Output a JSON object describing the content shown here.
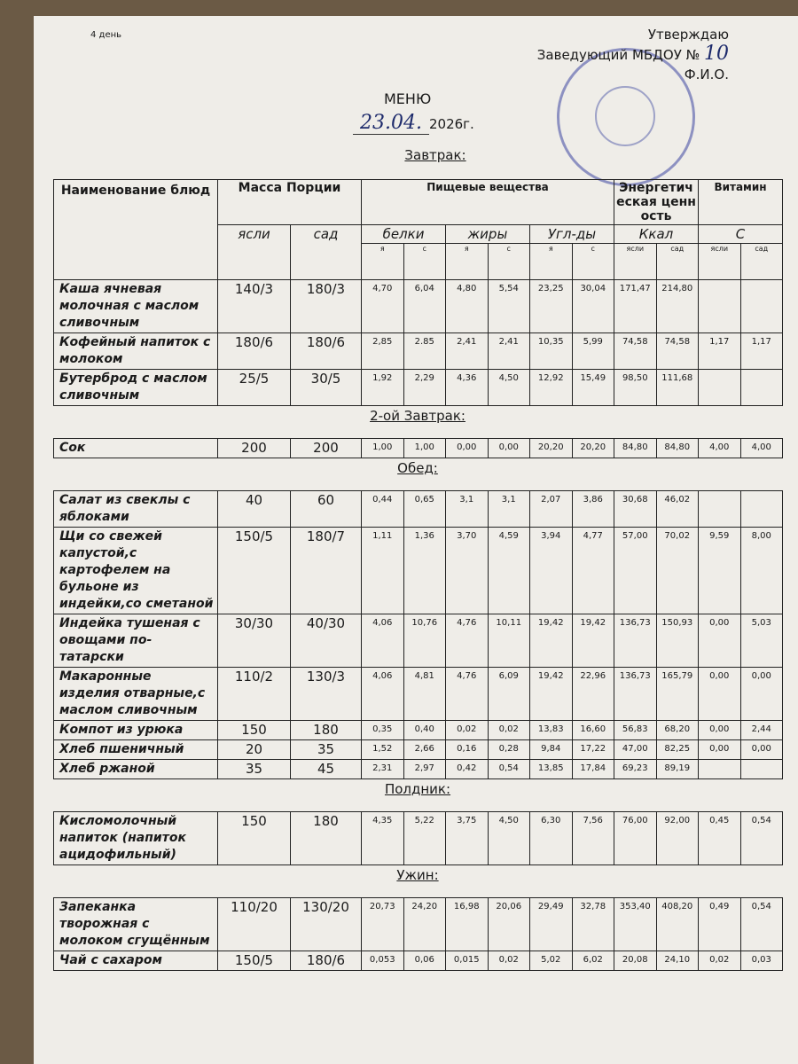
{
  "day_label": "4 день",
  "approval": {
    "line1": "Утверждаю",
    "line2": "Заведующий МБДОУ №",
    "number": "10",
    "line3": "Ф.И.О."
  },
  "title": "МЕНЮ",
  "date": {
    "handwritten": "23.04.",
    "year": "2026г."
  },
  "header": {
    "name": "Наименование блюд",
    "mass": "Масса Порции",
    "nutrients": "Пищевые вещества",
    "energy": "Энергетическая ценность",
    "vitamin": "Витамин",
    "mass_sub": [
      "ясли",
      "сад"
    ],
    "nutr_sub": [
      "белки",
      "жиры",
      "Угл-ды"
    ],
    "energy_sub": "Ккал",
    "vitamin_sub": "С",
    "small": [
      "я",
      "с",
      "я",
      "с",
      "я",
      "с",
      "ясли",
      "сад",
      "ясли",
      "сад"
    ]
  },
  "sections": [
    {
      "title": "Завтрак:",
      "rows": [
        {
          "name": "Каша ячневая молочная с маслом сливочным",
          "m1": "140/3",
          "m2": "180/3",
          "v": [
            "4,70",
            "6,04",
            "4,80",
            "5,54",
            "23,25",
            "30,04",
            "171,47",
            "214,80",
            "",
            ""
          ]
        },
        {
          "name": "Кофейный напиток с молоком",
          "m1": "180/6",
          "m2": "180/6",
          "v": [
            "2,85",
            "2.85",
            "2,41",
            "2,41",
            "10,35",
            "5,99",
            "74,58",
            "74,58",
            "1,17",
            "1,17"
          ]
        },
        {
          "name": "Бутерброд с маслом сливочным",
          "m1": "25/5",
          "m2": "30/5",
          "v": [
            "1,92",
            "2,29",
            "4,36",
            "4,50",
            "12,92",
            "15,49",
            "98,50",
            "111,68",
            "",
            ""
          ]
        }
      ]
    },
    {
      "title": "2-ой Завтрак:",
      "rows": [
        {
          "name": "Сок",
          "m1": "200",
          "m2": "200",
          "v": [
            "1,00",
            "1,00",
            "0,00",
            "0,00",
            "20,20",
            "20,20",
            "84,80",
            "84,80",
            "4,00",
            "4,00"
          ]
        }
      ]
    },
    {
      "title": "Обед:",
      "rows": [
        {
          "name": "Салат из свеклы с яблоками",
          "m1": "40",
          "m2": "60",
          "v": [
            "0,44",
            "0,65",
            "3,1",
            "3,1",
            "2,07",
            "3,86",
            "30,68",
            "46,02",
            "",
            ""
          ]
        },
        {
          "name": "Щи со свежей капустой,с картофелем на бульоне из индейки,со сметаной",
          "m1": "150/5",
          "m2": "180/7",
          "v": [
            "1,11",
            "1,36",
            "3,70",
            "4,59",
            "3,94",
            "4,77",
            "57,00",
            "70,02",
            "9,59",
            "8,00"
          ]
        },
        {
          "name": "Индейка тушеная с овощами по-татарски",
          "m1": "30/30",
          "m2": "40/30",
          "v": [
            "4,06",
            "10,76",
            "4,76",
            "10,11",
            "19,42",
            "19,42",
            "136,73",
            "150,93",
            "0,00",
            "5,03"
          ]
        },
        {
          "name": "Макаронные изделия отварные,с маслом сливочным",
          "m1": "110/2",
          "m2": "130/3",
          "v": [
            "4,06",
            "4,81",
            "4,76",
            "6,09",
            "19,42",
            "22,96",
            "136,73",
            "165,79",
            "0,00",
            "0,00"
          ]
        },
        {
          "name": "Компот из урюка",
          "m1": "150",
          "m2": "180",
          "v": [
            "0,35",
            "0,40",
            "0,02",
            "0,02",
            "13,83",
            "16,60",
            "56,83",
            "68,20",
            "0,00",
            "2,44"
          ]
        },
        {
          "name": "Хлеб пшеничный",
          "m1": "20",
          "m2": "35",
          "v": [
            "1,52",
            "2,66",
            "0,16",
            "0,28",
            "9,84",
            "17,22",
            "47,00",
            "82,25",
            "0,00",
            "0,00"
          ]
        },
        {
          "name": "Хлеб ржаной",
          "m1": "35",
          "m2": "45",
          "v": [
            "2,31",
            "2,97",
            "0,42",
            "0,54",
            "13,85",
            "17,84",
            "69,23",
            "89,19",
            "",
            ""
          ]
        }
      ]
    },
    {
      "title": "Полдник:",
      "rows": [
        {
          "name": "Кисломолочный напиток (напиток ацидофильный)",
          "m1": "150",
          "m2": "180",
          "v": [
            "4,35",
            "5,22",
            "3,75",
            "4,50",
            "6,30",
            "7,56",
            "76,00",
            "92,00",
            "0,45",
            "0,54"
          ]
        }
      ]
    },
    {
      "title": "Ужин:",
      "rows": [
        {
          "name": "Запеканка творожная с молоком сгущённым",
          "m1": "110/20",
          "m2": "130/20",
          "v": [
            "20,73",
            "24,20",
            "16,98",
            "20,06",
            "29,49",
            "32,78",
            "353,40",
            "408,20",
            "0,49",
            "0,54"
          ]
        },
        {
          "name": "Чай с сахаром",
          "m1": "150/5",
          "m2": "180/6",
          "v": [
            "0,053",
            "0,06",
            "0,015",
            "0,02",
            "5,02",
            "6,02",
            "20,08",
            "24,10",
            "0,02",
            "0,03"
          ]
        }
      ]
    }
  ]
}
